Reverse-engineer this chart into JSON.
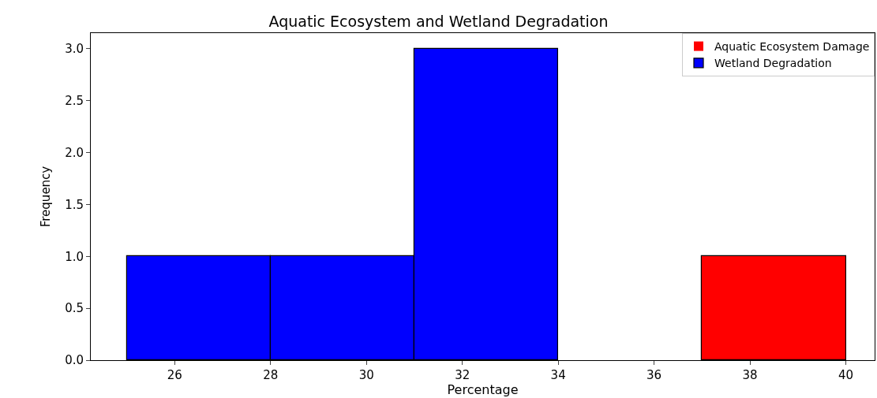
{
  "chart_data": {
    "type": "histogram",
    "title": "Aquatic Ecosystem and Wetland Degradation",
    "xlabel": "Percentage",
    "ylabel": "Frequency",
    "bins": [
      25,
      28,
      31,
      34,
      37,
      40
    ],
    "series": [
      {
        "name": "Aquatic Ecosystem Damage",
        "color": "#ff0000",
        "values": [
          0,
          0,
          0,
          0,
          1
        ]
      },
      {
        "name": "Wetland Degradation",
        "color": "#0000ff",
        "values": [
          1,
          1,
          3,
          0,
          0
        ]
      }
    ],
    "xlim": [
      24.25,
      40.6
    ],
    "xticks": [
      26,
      28,
      30,
      32,
      34,
      36,
      38,
      40
    ],
    "ylim": [
      0,
      3.15
    ],
    "yticks": [
      {
        "value": 0,
        "label": "0.0"
      },
      0.5,
      {
        "value": 1,
        "label": "1.0"
      },
      1.5,
      {
        "value": 2,
        "label": "2.0"
      },
      2.5,
      {
        "value": 3,
        "label": "3.0"
      }
    ],
    "grid": false,
    "legend": "top right"
  }
}
